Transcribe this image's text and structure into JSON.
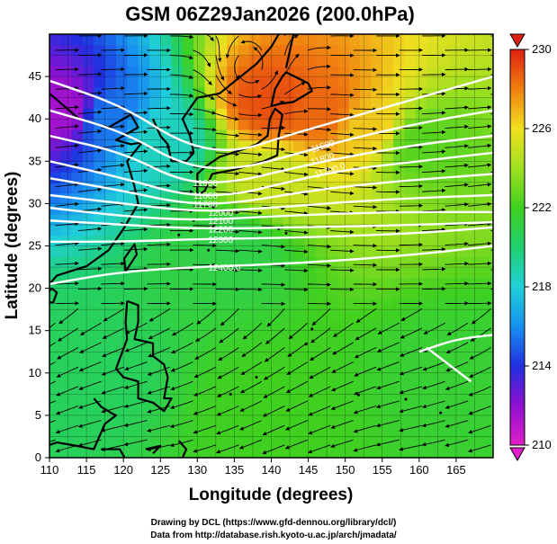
{
  "chart_data": {
    "type": "heatmap",
    "title": "GSM 06Z29Jan2026 (200.0hPa)",
    "xlabel": "Longitude (degrees)",
    "ylabel": "Latitude  (degrees)",
    "xlim": [
      110,
      170
    ],
    "ylim": [
      0,
      50
    ],
    "xticks": [
      110,
      115,
      120,
      125,
      130,
      135,
      140,
      145,
      150,
      155,
      160,
      165
    ],
    "yticks": [
      0,
      5,
      10,
      15,
      20,
      25,
      30,
      35,
      40,
      45
    ],
    "colorbar": {
      "min": 210,
      "max": 230,
      "ticks": [
        210,
        214,
        218,
        222,
        226,
        230
      ],
      "stops": [
        {
          "v": 210,
          "c": "#e020c8"
        },
        {
          "v": 212,
          "c": "#9010d0"
        },
        {
          "v": 214,
          "c": "#2030e0"
        },
        {
          "v": 216,
          "c": "#1890f0"
        },
        {
          "v": 218,
          "c": "#20d0d8"
        },
        {
          "v": 220,
          "c": "#20d070"
        },
        {
          "v": 222,
          "c": "#40d020"
        },
        {
          "v": 224,
          "c": "#a0e020"
        },
        {
          "v": 226,
          "c": "#f0e020"
        },
        {
          "v": 228,
          "c": "#f08010"
        },
        {
          "v": 230,
          "c": "#e02010"
        }
      ]
    },
    "field_features": [
      {
        "lon": 112,
        "lat": 41,
        "value": 211.5
      },
      {
        "lon": 118,
        "lat": 40,
        "value": 215.5
      },
      {
        "lon": 125,
        "lat": 37.5,
        "value": 218.5
      },
      {
        "lon": 140,
        "lat": 42,
        "value": 229
      },
      {
        "lon": 147,
        "lat": 41,
        "value": 228.5
      },
      {
        "lon": 153,
        "lat": 39,
        "value": 226.5
      },
      {
        "lon": 140,
        "lat": 33,
        "value": 225
      },
      {
        "lon": 160,
        "lat": 37,
        "value": 222.5
      },
      {
        "lon": 135,
        "lat": 25,
        "value": 221
      },
      {
        "lon": 114,
        "lat": 10,
        "value": 220.5
      },
      {
        "lon": 140,
        "lat": 5,
        "value": 222
      },
      {
        "lon": 165,
        "lat": 10,
        "value": 221.5
      }
    ],
    "height_contours": [
      {
        "label": "",
        "points": [
          [
            110,
            44.5
          ],
          [
            120,
            41.5
          ],
          [
            128,
            37
          ],
          [
            135,
            36
          ],
          [
            142,
            38
          ],
          [
            150,
            40
          ],
          [
            160,
            42.5
          ],
          [
            170,
            45
          ]
        ]
      },
      {
        "label": "",
        "points": [
          [
            110,
            41
          ],
          [
            120,
            38.5
          ],
          [
            128,
            34.5
          ],
          [
            135,
            34
          ],
          [
            142,
            35.5
          ],
          [
            150,
            37.5
          ],
          [
            160,
            39.5
          ],
          [
            170,
            41
          ]
        ]
      },
      {
        "label": "11600",
        "points": [
          [
            110,
            38
          ],
          [
            120,
            36
          ],
          [
            128,
            32.5
          ],
          [
            135,
            32.5
          ],
          [
            142,
            34
          ],
          [
            150,
            35.5
          ],
          [
            160,
            37
          ],
          [
            170,
            38
          ]
        ]
      },
      {
        "label": "11800",
        "points": [
          [
            110,
            35
          ],
          [
            120,
            33
          ],
          [
            128,
            31
          ],
          [
            135,
            31
          ],
          [
            142,
            32.5
          ],
          [
            150,
            34
          ],
          [
            160,
            35
          ],
          [
            170,
            36
          ]
        ]
      },
      {
        "label": "11700",
        "points": [
          [
            110,
            33
          ],
          [
            120,
            31.5
          ],
          [
            128,
            30
          ],
          [
            135,
            30
          ],
          [
            145,
            31.5
          ],
          [
            155,
            32.5
          ],
          [
            170,
            33.5
          ]
        ]
      },
      {
        "label": "12000",
        "points": [
          [
            110,
            31
          ],
          [
            120,
            30
          ],
          [
            130,
            29
          ],
          [
            140,
            29.5
          ],
          [
            155,
            30.5
          ],
          [
            170,
            31
          ]
        ]
      },
      {
        "label": "12100",
        "points": [
          [
            110,
            29.5
          ],
          [
            120,
            28.5
          ],
          [
            130,
            28
          ],
          [
            140,
            28.5
          ],
          [
            155,
            29
          ],
          [
            170,
            29
          ]
        ]
      },
      {
        "label": "12200",
        "points": [
          [
            110,
            28
          ],
          [
            120,
            27.5
          ],
          [
            130,
            27
          ],
          [
            145,
            27.2
          ],
          [
            160,
            27.5
          ],
          [
            170,
            27.8
          ]
        ]
      },
      {
        "label": "12300",
        "points": [
          [
            110,
            25.5
          ],
          [
            120,
            25.5
          ],
          [
            130,
            25.8
          ],
          [
            145,
            26
          ],
          [
            160,
            26.5
          ],
          [
            170,
            27.2
          ]
        ]
      },
      {
        "label": "12400.0",
        "points": [
          [
            110,
            20.5
          ],
          [
            120,
            22
          ],
          [
            130,
            22.5
          ],
          [
            145,
            23
          ],
          [
            160,
            24
          ],
          [
            170,
            25
          ]
        ]
      },
      {
        "label": "",
        "points": [
          [
            160,
            12.5
          ],
          [
            165,
            14
          ],
          [
            170,
            14.5
          ]
        ]
      },
      {
        "label": "",
        "points": [
          [
            161,
            13
          ],
          [
            164,
            11
          ],
          [
            167,
            9
          ]
        ]
      }
    ],
    "jet_labels": [
      {
        "text": "11500",
        "lon": 145.5,
        "lat": 36
      },
      {
        "text": "11800",
        "lon": 145.5,
        "lat": 34.5
      },
      {
        "text": "11700.0",
        "lon": 146,
        "lat": 33
      }
    ]
  },
  "credits": {
    "line1": "Drawing by DCL (https://www.gfd-dennou.org/library/dcl/)",
    "line2": "Data from http://database.rish.kyoto-u.ac.jp/arch/jmadata/"
  }
}
